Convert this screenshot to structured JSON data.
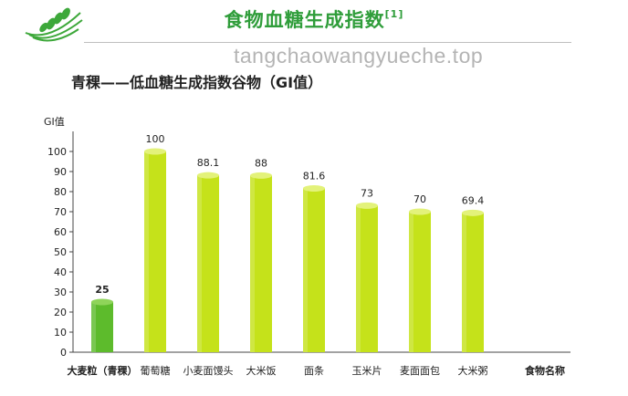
{
  "header": {
    "title": "食物血糖生成指数",
    "footnote_ref": "[1]",
    "watermark": "tangchaowangyueche.top"
  },
  "subtitle": "青稞——低血糖生成指数谷物（GI值）",
  "colors": {
    "title_green": "#2f9d3a",
    "highlight_bar": "#5dbb2c",
    "normal_bar": "#c5e21a",
    "highlight_text": "#3ea531"
  },
  "chart_data": {
    "type": "bar",
    "ylabel": "GI值",
    "xlabel": "食物名称",
    "ylim": [
      0,
      100
    ],
    "yticks": [
      0,
      10,
      20,
      30,
      40,
      50,
      60,
      70,
      80,
      90,
      100
    ],
    "categories": [
      "大麦粒（青稞）",
      "葡萄糖",
      "小麦面馒头",
      "大米饭",
      "面条",
      "玉米片",
      "麦面面包",
      "大米粥"
    ],
    "values": [
      25,
      100,
      88.1,
      88,
      81.6,
      73,
      70,
      69.4
    ],
    "value_labels": [
      "25",
      "100",
      "88.1",
      "88",
      "81.6",
      "73",
      "70",
      "69.4"
    ],
    "highlight_index": 0
  }
}
